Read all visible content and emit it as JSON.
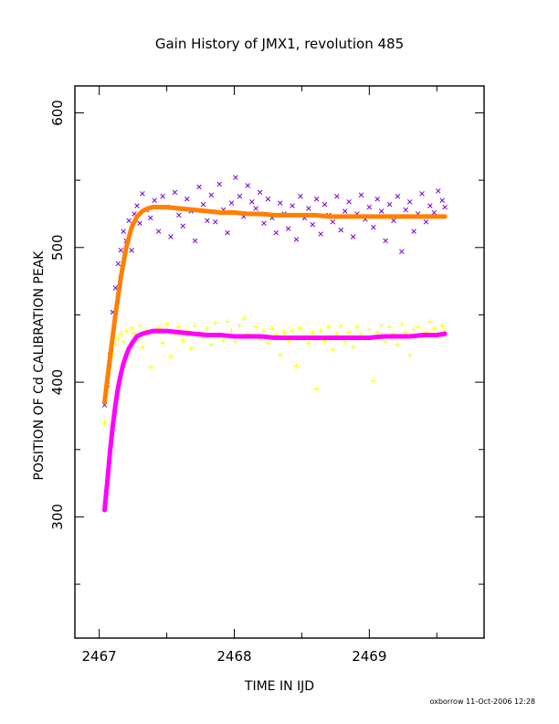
{
  "chart_data": {
    "type": "scatter",
    "title": "Gain History of JMX1, revolution 485",
    "xlabel": "TIME IN IJD",
    "ylabel": "POSITION OF Cd CALIBRATION PEAK",
    "xlim": [
      2466.82,
      2469.85
    ],
    "ylim": [
      210,
      620
    ],
    "xticks": [
      2467,
      2468,
      2469
    ],
    "xtick_labels": [
      "2467",
      "2468",
      "2469"
    ],
    "yticks": [
      300,
      400,
      500,
      600
    ],
    "ytick_labels": [
      "300",
      "400",
      "500",
      "600"
    ],
    "grid": false,
    "legend": "none",
    "series": [
      {
        "marker": "x",
        "color": "#7b00d4",
        "x": [
          2467.04,
          2467.06,
          2467.08,
          2467.1,
          2467.12,
          2467.14,
          2467.16,
          2467.18,
          2467.2,
          2467.22,
          2467.24,
          2467.26,
          2467.28,
          2467.3,
          2467.32,
          2467.35,
          2467.38,
          2467.41,
          2467.44,
          2467.47,
          2467.5,
          2467.53,
          2467.56,
          2467.59,
          2467.62,
          2467.65,
          2467.68,
          2467.71,
          2467.74,
          2467.77,
          2467.8,
          2467.83,
          2467.86,
          2467.89,
          2467.92,
          2467.95,
          2467.98,
          2468.01,
          2468.04,
          2468.07,
          2468.1,
          2468.13,
          2468.16,
          2468.19,
          2468.22,
          2468.25,
          2468.28,
          2468.31,
          2468.34,
          2468.37,
          2468.4,
          2468.43,
          2468.46,
          2468.49,
          2468.52,
          2468.55,
          2468.58,
          2468.61,
          2468.64,
          2468.67,
          2468.7,
          2468.73,
          2468.76,
          2468.79,
          2468.82,
          2468.85,
          2468.88,
          2468.91,
          2468.94,
          2468.97,
          2469.0,
          2469.03,
          2469.06,
          2469.09,
          2469.12,
          2469.15,
          2469.18,
          2469.21,
          2469.24,
          2469.27,
          2469.3,
          2469.33,
          2469.36,
          2469.39,
          2469.42,
          2469.45,
          2469.48,
          2469.51,
          2469.54,
          2469.56
        ],
        "y": [
          383,
          398,
          420,
          452,
          470,
          488,
          498,
          512,
          505,
          520,
          498,
          525,
          531,
          518,
          540,
          528,
          522,
          535,
          512,
          538,
          530,
          508,
          541,
          524,
          516,
          536,
          527,
          505,
          545,
          532,
          520,
          539,
          519,
          547,
          528,
          511,
          533,
          552,
          538,
          523,
          546,
          534,
          529,
          541,
          518,
          536,
          522,
          511,
          533,
          525,
          514,
          531,
          506,
          538,
          522,
          529,
          517,
          536,
          510,
          532,
          524,
          519,
          538,
          513,
          527,
          534,
          508,
          525,
          539,
          521,
          530,
          515,
          536,
          527,
          505,
          532,
          520,
          538,
          497,
          528,
          534,
          512,
          525,
          540,
          519,
          531,
          526,
          542,
          535,
          530
        ]
      },
      {
        "marker": "+",
        "color": "#ffff00",
        "x": [
          2467.04,
          2467.06,
          2467.08,
          2467.1,
          2467.12,
          2467.14,
          2467.16,
          2467.18,
          2467.2,
          2467.22,
          2467.24,
          2467.26,
          2467.28,
          2467.3,
          2467.32,
          2467.35,
          2467.38,
          2467.41,
          2467.44,
          2467.47,
          2467.5,
          2467.53,
          2467.56,
          2467.59,
          2467.62,
          2467.65,
          2467.68,
          2467.71,
          2467.74,
          2467.77,
          2467.8,
          2467.83,
          2467.86,
          2467.89,
          2467.92,
          2467.95,
          2467.98,
          2468.01,
          2468.04,
          2468.07,
          2468.1,
          2468.13,
          2468.16,
          2468.19,
          2468.22,
          2468.25,
          2468.28,
          2468.31,
          2468.34,
          2468.37,
          2468.4,
          2468.43,
          2468.46,
          2468.49,
          2468.52,
          2468.55,
          2468.58,
          2468.61,
          2468.64,
          2468.67,
          2468.7,
          2468.73,
          2468.76,
          2468.79,
          2468.82,
          2468.85,
          2468.88,
          2468.91,
          2468.94,
          2468.97,
          2469.0,
          2469.03,
          2469.06,
          2469.09,
          2469.12,
          2469.15,
          2469.18,
          2469.21,
          2469.24,
          2469.27,
          2469.3,
          2469.33,
          2469.36,
          2469.39,
          2469.42,
          2469.45,
          2469.48,
          2469.51,
          2469.54,
          2469.56
        ],
        "y": [
          370,
          392,
          410,
          420,
          428,
          432,
          436,
          430,
          438,
          422,
          440,
          436,
          431,
          442,
          426,
          438,
          411,
          437,
          440,
          429,
          443,
          419,
          436,
          441,
          431,
          438,
          425,
          442,
          437,
          433,
          440,
          428,
          444,
          436,
          431,
          445,
          438,
          430,
          442,
          447,
          436,
          434,
          441,
          432,
          438,
          429,
          440,
          435,
          420,
          437,
          431,
          438,
          412,
          440,
          433,
          429,
          437,
          395,
          438,
          431,
          441,
          424,
          436,
          442,
          430,
          437,
          426,
          441,
          436,
          432,
          439,
          401,
          437,
          442,
          430,
          441,
          436,
          428,
          443,
          437,
          420,
          439,
          441,
          433,
          437,
          445,
          440,
          436,
          442,
          438
        ]
      }
    ],
    "fit_curves": [
      {
        "color": "#ff7f00",
        "x": [
          2467.04,
          2467.08,
          2467.12,
          2467.16,
          2467.2,
          2467.24,
          2467.28,
          2467.32,
          2467.36,
          2467.4,
          2467.45,
          2467.5,
          2467.6,
          2467.7,
          2467.8,
          2467.9,
          2468.0,
          2468.1,
          2468.2,
          2468.3,
          2468.4,
          2468.5,
          2468.6,
          2468.7,
          2468.8,
          2468.9,
          2469.0,
          2469.1,
          2469.2,
          2469.3,
          2469.4,
          2469.5,
          2469.56
        ],
        "y": [
          385,
          418,
          450,
          478,
          500,
          515,
          523,
          527,
          529,
          530,
          530,
          530,
          529,
          528,
          527,
          526,
          526,
          525,
          525,
          524,
          524,
          524,
          524,
          523,
          523,
          523,
          523,
          523,
          523,
          523,
          523,
          523,
          523
        ]
      },
      {
        "color": "#ff00ff",
        "x": [
          2467.04,
          2467.06,
          2467.08,
          2467.1,
          2467.12,
          2467.14,
          2467.16,
          2467.18,
          2467.2,
          2467.22,
          2467.25,
          2467.28,
          2467.32,
          2467.36,
          2467.4,
          2467.45,
          2467.5,
          2467.6,
          2467.7,
          2467.8,
          2467.9,
          2468.0,
          2468.1,
          2468.2,
          2468.3,
          2468.4,
          2468.5,
          2468.6,
          2468.7,
          2468.8,
          2468.9,
          2469.0,
          2469.1,
          2469.2,
          2469.3,
          2469.4,
          2469.5,
          2469.56
        ],
        "y": [
          305,
          326,
          348,
          367,
          383,
          396,
          406,
          414,
          420,
          425,
          430,
          434,
          436,
          437,
          438,
          438,
          438,
          437,
          436,
          435,
          435,
          434,
          434,
          434,
          433,
          433,
          433,
          433,
          433,
          433,
          433,
          433,
          434,
          434,
          434,
          435,
          435,
          436
        ]
      }
    ]
  },
  "footer": {
    "credit": "oxborrow 11-Oct-2006 12:28"
  }
}
